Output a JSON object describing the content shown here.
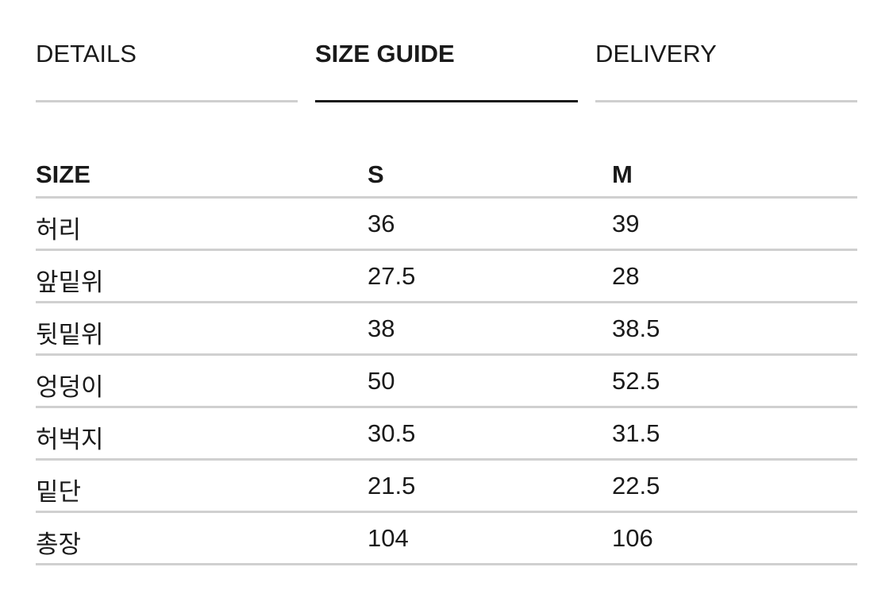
{
  "tabs": [
    {
      "label": "DETAILS",
      "active": false
    },
    {
      "label": "SIZE GUIDE",
      "active": true
    },
    {
      "label": "DELIVERY",
      "active": false
    }
  ],
  "size_table": {
    "headers": [
      "SIZE",
      "S",
      "M"
    ],
    "rows": [
      [
        "허리",
        "36",
        "39"
      ],
      [
        "앞밑위",
        "27.5",
        "28"
      ],
      [
        "뒷밑위",
        "38",
        "38.5"
      ],
      [
        "엉덩이",
        "50",
        "52.5"
      ],
      [
        "허벅지",
        "30.5",
        "31.5"
      ],
      [
        "밑단",
        "21.5",
        "22.5"
      ],
      [
        "총장",
        "104",
        "106"
      ]
    ]
  }
}
